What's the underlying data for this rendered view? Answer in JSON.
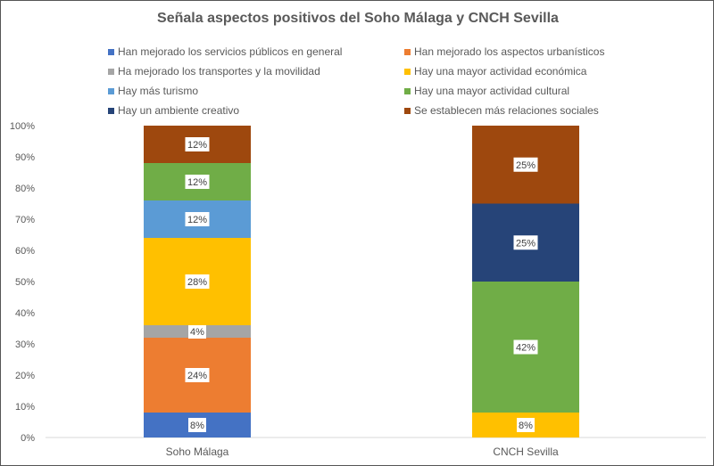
{
  "chart_data": {
    "type": "bar",
    "stacked": true,
    "title": "Señala aspectos positivos del Soho Málaga y CNCH Sevilla",
    "categories": [
      "Soho Málaga",
      "CNCH Sevilla"
    ],
    "ylim": [
      0,
      100
    ],
    "yticks": [
      "0%",
      "10%",
      "20%",
      "30%",
      "40%",
      "50%",
      "60%",
      "70%",
      "80%",
      "90%",
      "100%"
    ],
    "grid": false,
    "legend_position": "top",
    "series": [
      {
        "name": "Han mejorado los servicios públicos en general",
        "color": "#4472C4",
        "values": [
          8,
          0
        ]
      },
      {
        "name": "Han mejorado los aspectos urbanísticos",
        "color": "#ED7D31",
        "values": [
          24,
          0
        ]
      },
      {
        "name": "Ha mejorado los transportes y la movilidad",
        "color": "#A5A5A5",
        "values": [
          4,
          0
        ]
      },
      {
        "name": "Hay una mayor actividad económica",
        "color": "#FFC000",
        "values": [
          28,
          8
        ]
      },
      {
        "name": "Hay más turismo",
        "color": "#5B9BD5",
        "values": [
          12,
          0
        ]
      },
      {
        "name": "Hay una mayor actividad cultural",
        "color": "#70AD47",
        "values": [
          12,
          42
        ]
      },
      {
        "name": "Hay un ambiente creativo",
        "color": "#264478",
        "values": [
          0,
          25
        ]
      },
      {
        "name": "Se establecen más relaciones sociales",
        "color": "#9E480E",
        "values": [
          12,
          25
        ]
      }
    ]
  }
}
